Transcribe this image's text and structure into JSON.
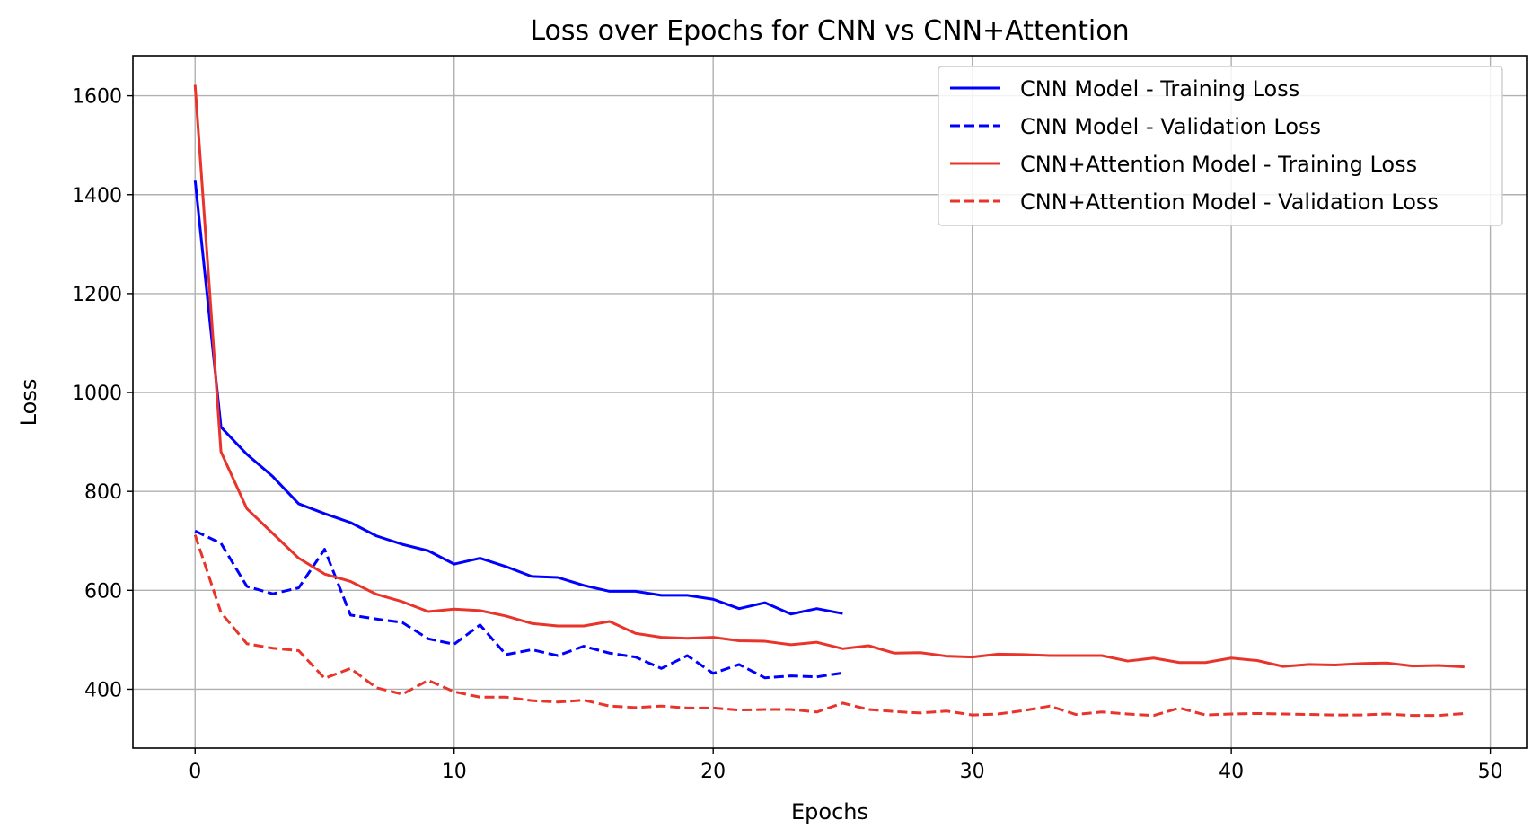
{
  "chart_data": {
    "type": "line",
    "title": "Loss over Epochs for CNN vs CNN+Attention",
    "xlabel": "Epochs",
    "ylabel": "Loss",
    "xlim": [
      -2.4,
      51.4
    ],
    "ylim": [
      281,
      1681
    ],
    "xticks": [
      0,
      10,
      20,
      30,
      40,
      50
    ],
    "yticks": [
      400,
      600,
      800,
      1000,
      1200,
      1400,
      1600
    ],
    "grid": true,
    "legend_position": "top-right",
    "series": [
      {
        "name": "CNN Model - Training Loss",
        "color": "#0000ff",
        "dash": "solid",
        "x": [
          0,
          1,
          2,
          3,
          4,
          5,
          6,
          7,
          8,
          9,
          10,
          11,
          12,
          13,
          14,
          15,
          16,
          17,
          18,
          19,
          20,
          21,
          22,
          23,
          24,
          25
        ],
        "values": [
          1430,
          930,
          875,
          830,
          775,
          755,
          737,
          710,
          693,
          680,
          653,
          665,
          648,
          628,
          626,
          610,
          598,
          598,
          590,
          590,
          582,
          563,
          575,
          552,
          563,
          553
        ]
      },
      {
        "name": "CNN Model - Validation Loss",
        "color": "#0000ff",
        "dash": "dashed",
        "x": [
          0,
          1,
          2,
          3,
          4,
          5,
          6,
          7,
          8,
          9,
          10,
          11,
          12,
          13,
          14,
          15,
          16,
          17,
          18,
          19,
          20,
          21,
          22,
          23,
          24,
          25
        ],
        "values": [
          720,
          695,
          608,
          593,
          605,
          683,
          550,
          542,
          535,
          502,
          491,
          530,
          470,
          480,
          468,
          487,
          473,
          465,
          442,
          468,
          432,
          450,
          423,
          427,
          425,
          433
        ]
      },
      {
        "name": "CNN+Attention Model - Training Loss",
        "color": "#e8342b",
        "dash": "solid",
        "x": [
          0,
          1,
          2,
          3,
          4,
          5,
          6,
          7,
          8,
          9,
          10,
          11,
          12,
          13,
          14,
          15,
          16,
          17,
          18,
          19,
          20,
          21,
          22,
          23,
          24,
          25,
          26,
          27,
          28,
          29,
          30,
          31,
          32,
          33,
          34,
          35,
          36,
          37,
          38,
          39,
          40,
          41,
          42,
          43,
          44,
          45,
          46,
          47,
          48,
          49
        ],
        "values": [
          1622,
          880,
          765,
          715,
          665,
          633,
          618,
          592,
          577,
          557,
          562,
          559,
          548,
          533,
          528,
          528,
          537,
          513,
          505,
          503,
          505,
          498,
          497,
          490,
          495,
          482,
          488,
          473,
          474,
          467,
          465,
          471,
          470,
          468,
          468,
          468,
          457,
          463,
          454,
          454,
          463,
          458,
          446,
          450,
          449,
          452,
          453,
          447,
          448,
          445
        ]
      },
      {
        "name": "CNN+Attention Model - Validation Loss",
        "color": "#e8342b",
        "dash": "dashed",
        "x": [
          0,
          1,
          2,
          3,
          4,
          5,
          6,
          7,
          8,
          9,
          10,
          11,
          12,
          13,
          14,
          15,
          16,
          17,
          18,
          19,
          20,
          21,
          22,
          23,
          24,
          25,
          26,
          27,
          28,
          29,
          30,
          31,
          32,
          33,
          34,
          35,
          36,
          37,
          38,
          39,
          40,
          41,
          42,
          43,
          44,
          45,
          46,
          47,
          48,
          49
        ],
        "values": [
          712,
          555,
          492,
          483,
          478,
          422,
          442,
          403,
          390,
          418,
          395,
          384,
          384,
          377,
          374,
          378,
          366,
          363,
          366,
          362,
          362,
          358,
          359,
          359,
          354,
          372,
          359,
          355,
          352,
          356,
          348,
          350,
          357,
          366,
          349,
          354,
          350,
          347,
          362,
          348,
          350,
          351,
          350,
          349,
          348,
          348,
          350,
          347,
          347,
          351
        ]
      }
    ]
  }
}
